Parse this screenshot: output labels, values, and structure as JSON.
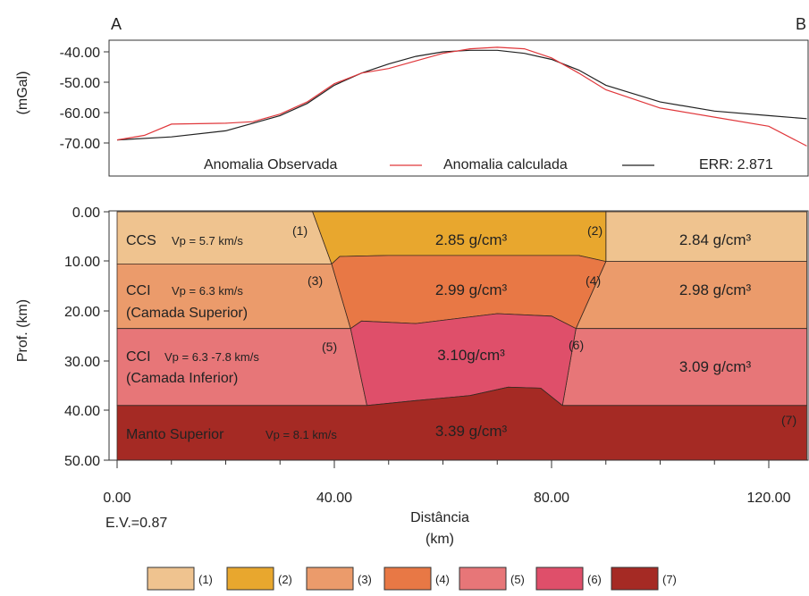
{
  "corner_labels": {
    "left": "A",
    "right": "B"
  },
  "gravity_panel": {
    "ylabel": "(mGal)",
    "yticks": [
      "-40.00",
      "-50.00",
      "-60.00",
      "-70.00"
    ],
    "ytick_values": [
      -40,
      -50,
      -60,
      -70
    ],
    "ylim": [
      -73,
      -33
    ],
    "legend": {
      "observed_label": "Anomalia Observada",
      "calculated_label": "Anomalia calculada",
      "error_label": "ERR: 2.871"
    },
    "colors": {
      "observed": "#e0373b",
      "calculated": "#222222"
    },
    "observed": {
      "x": [
        0,
        5,
        10,
        20,
        25,
        30,
        35,
        40,
        45,
        50,
        55,
        60,
        65,
        70,
        75,
        80,
        85,
        90,
        100,
        110,
        120,
        127
      ],
      "y": [
        -69,
        -67.5,
        -63.8,
        -63.5,
        -63,
        -60.5,
        -56.5,
        -50.5,
        -47,
        -45.5,
        -43,
        -40.5,
        -39,
        -38.5,
        -39,
        -42,
        -47,
        -52.5,
        -58.5,
        -61.5,
        -64.5,
        -71
      ]
    },
    "calculated": {
      "x": [
        0,
        10,
        20,
        30,
        35,
        40,
        45,
        50,
        55,
        60,
        65,
        70,
        75,
        80,
        85,
        90,
        100,
        110,
        120,
        127
      ],
      "y": [
        -69,
        -68,
        -66,
        -61,
        -57,
        -51,
        -47,
        -44,
        -41.5,
        -40,
        -39.5,
        -39.5,
        -40.5,
        -42.5,
        -46,
        -51,
        -56.5,
        -59.5,
        -61,
        -62
      ]
    }
  },
  "section_panel": {
    "ylabel": "Prof. (km)",
    "yticks": [
      "0.00",
      "10.00",
      "20.00",
      "30.00",
      "40.00",
      "50.00"
    ],
    "ytick_values": [
      0,
      10,
      20,
      30,
      40,
      50
    ],
    "xticks": [
      "0.00",
      "40.00",
      "80.00",
      "120.00"
    ],
    "xtick_values": [
      0,
      40,
      80,
      120
    ],
    "xlim": [
      0,
      127
    ],
    "ylim": [
      0,
      50
    ],
    "xlabel_line1": "Distância",
    "xlabel_line2": "(km)",
    "exaggeration": "E.V.=0.87",
    "bodies": [
      {
        "id": 1,
        "color": "#efc38f",
        "points": [
          [
            0,
            0
          ],
          [
            36,
            0
          ],
          [
            39.5,
            10.5
          ],
          [
            0,
            10.5
          ]
        ]
      },
      {
        "id": 1,
        "color": "#efc38f",
        "points": [
          [
            90,
            0
          ],
          [
            127,
            0
          ],
          [
            127,
            10
          ],
          [
            90,
            10
          ]
        ]
      },
      {
        "id": 2,
        "color": "#e8a72e",
        "points": [
          [
            36,
            0
          ],
          [
            90,
            0
          ],
          [
            90,
            10
          ],
          [
            85,
            8.8
          ],
          [
            50,
            8.8
          ],
          [
            41,
            9
          ],
          [
            39.5,
            10.5
          ]
        ]
      },
      {
        "id": 3,
        "color": "#eb9b6b",
        "points": [
          [
            0,
            10.5
          ],
          [
            39.5,
            10.5
          ],
          [
            43,
            23.5
          ],
          [
            0,
            23.5
          ]
        ]
      },
      {
        "id": 3,
        "color": "#eb9b6b",
        "points": [
          [
            90,
            10
          ],
          [
            127,
            10
          ],
          [
            127,
            23.5
          ],
          [
            84.5,
            23.5
          ]
        ]
      },
      {
        "id": 4,
        "color": "#e87845",
        "points": [
          [
            39.5,
            10.5
          ],
          [
            41,
            9
          ],
          [
            50,
            8.8
          ],
          [
            85,
            8.8
          ],
          [
            90,
            10
          ],
          [
            84.5,
            23.5
          ],
          [
            80,
            21
          ],
          [
            70,
            20.5
          ],
          [
            55,
            22.5
          ],
          [
            45,
            22
          ],
          [
            43,
            23.5
          ]
        ]
      },
      {
        "id": 5,
        "color": "#e77678",
        "points": [
          [
            0,
            23.5
          ],
          [
            43,
            23.5
          ],
          [
            46,
            39
          ],
          [
            0,
            39
          ]
        ]
      },
      {
        "id": 5,
        "color": "#e77678",
        "points": [
          [
            84.5,
            23.5
          ],
          [
            127,
            23.5
          ],
          [
            127,
            39
          ],
          [
            82,
            39
          ]
        ]
      },
      {
        "id": 6,
        "color": "#df4f6a",
        "points": [
          [
            43,
            23.5
          ],
          [
            45,
            22
          ],
          [
            55,
            22.5
          ],
          [
            70,
            20.5
          ],
          [
            80,
            21
          ],
          [
            84.5,
            23.5
          ],
          [
            82,
            39
          ],
          [
            78,
            35.5
          ],
          [
            72,
            35.3
          ],
          [
            65,
            37
          ],
          [
            55,
            38
          ],
          [
            46,
            39
          ]
        ]
      },
      {
        "id": 7,
        "color": "#a52a24",
        "points": [
          [
            0,
            39
          ],
          [
            46,
            39
          ],
          [
            55,
            38
          ],
          [
            65,
            37
          ],
          [
            72,
            35.3
          ],
          [
            78,
            35.5
          ],
          [
            82,
            39
          ],
          [
            127,
            39
          ],
          [
            127,
            50
          ],
          [
            0,
            50
          ]
        ]
      }
    ],
    "layer_labels": {
      "ccs": "CCS",
      "ccs_vp": "Vp = 5.7 km/s",
      "cci_upper": "CCI",
      "cci_upper_vp": "Vp = 6.3 km/s",
      "cci_upper_sub": "(Camada Superior)",
      "cci_lower": "CCI",
      "cci_lower_vp": "Vp = 6.3 -7.8 km/s",
      "cci_lower_sub": "(Camada Inferior)",
      "mantle": "Manto Superior",
      "mantle_vp": "Vp = 8.1 km/s"
    },
    "densities": {
      "d1": "2.85 g/cm³",
      "d2": "2.84 g/cm³",
      "d3": "2.99 g/cm³",
      "d4": "2.98 g/cm³",
      "d5": "3.10g/cm³",
      "d6": "3.09 g/cm³",
      "d7": "3.39 g/cm³"
    },
    "body_numbers": [
      "(1)",
      "(2)",
      "(3)",
      "(4)",
      "(5)",
      "(6)",
      "(7)"
    ]
  },
  "legend": [
    {
      "label": "(1)",
      "color": "#efc38f"
    },
    {
      "label": "(2)",
      "color": "#e8a72e"
    },
    {
      "label": "(3)",
      "color": "#eb9b6b"
    },
    {
      "label": "(4)",
      "color": "#e87845"
    },
    {
      "label": "(5)",
      "color": "#e77678"
    },
    {
      "label": "(6)",
      "color": "#df4f6a"
    },
    {
      "label": "(7)",
      "color": "#a52a24"
    }
  ]
}
